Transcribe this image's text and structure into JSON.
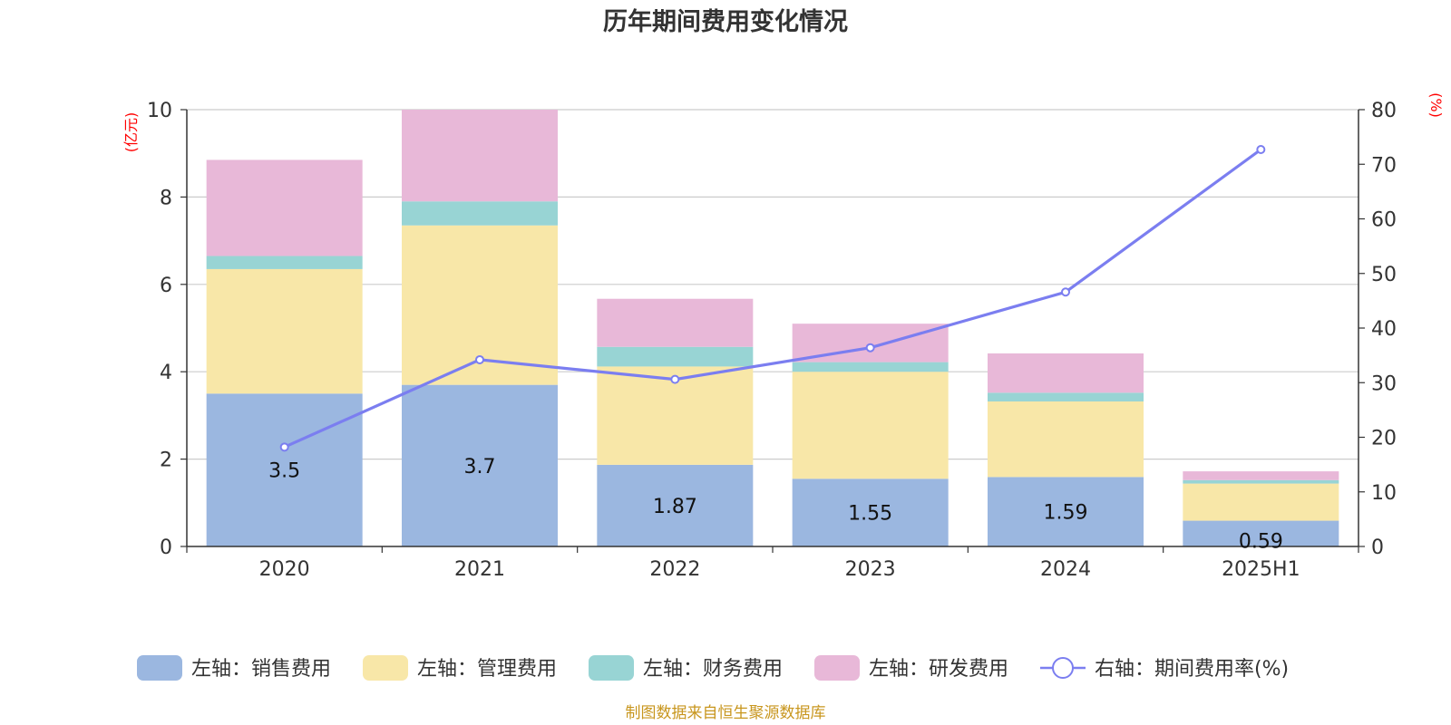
{
  "colors": {
    "sales": "#9bb7e0",
    "admin": "#f8e7a8",
    "finance": "#98d4d4",
    "rd": "#e8b8d8",
    "rate": "#7b7ef0",
    "unit_text": "#ff0000",
    "source_text": "#c8961e"
  },
  "chart_data": {
    "type": "bar",
    "title": "历年期间费用变化情况",
    "categories": [
      "2020",
      "2021",
      "2022",
      "2023",
      "2024",
      "2025H1"
    ],
    "left_axis": {
      "unit": "(亿元)",
      "ylim": [
        0,
        10
      ],
      "ticks": [
        "0",
        "2",
        "4",
        "6",
        "8",
        "10"
      ]
    },
    "right_axis": {
      "unit": "(%)",
      "ylim": [
        0,
        80
      ],
      "ticks": [
        "0",
        "10",
        "20",
        "30",
        "40",
        "50",
        "60",
        "70",
        "80"
      ]
    },
    "series": [
      {
        "key": "sales",
        "name": "左轴：销售费用",
        "type": "bar",
        "stack": true,
        "values": [
          3.5,
          3.7,
          1.87,
          1.55,
          1.59,
          0.59
        ],
        "labels": [
          "3.5",
          "3.7",
          "1.87",
          "1.55",
          "1.59",
          "0.59"
        ]
      },
      {
        "key": "admin",
        "name": "左轴：管理费用",
        "type": "bar",
        "stack": true,
        "values": [
          2.85,
          3.65,
          2.25,
          2.45,
          1.73,
          0.85
        ]
      },
      {
        "key": "finance",
        "name": "左轴：财务费用",
        "type": "bar",
        "stack": true,
        "values": [
          0.3,
          0.55,
          0.45,
          0.22,
          0.2,
          0.08
        ]
      },
      {
        "key": "rd",
        "name": "左轴：研发费用",
        "type": "bar",
        "stack": true,
        "values": [
          2.2,
          2.1,
          1.1,
          0.88,
          0.9,
          0.2
        ]
      },
      {
        "key": "rate",
        "name": "右轴：期间费用率(%)",
        "type": "line",
        "axis": "right",
        "values": [
          18.2,
          34.2,
          30.6,
          36.4,
          46.6,
          72.7
        ]
      }
    ],
    "grid": true,
    "legend_position": "bottom"
  },
  "source": "制图数据来自恒生聚源数据库"
}
